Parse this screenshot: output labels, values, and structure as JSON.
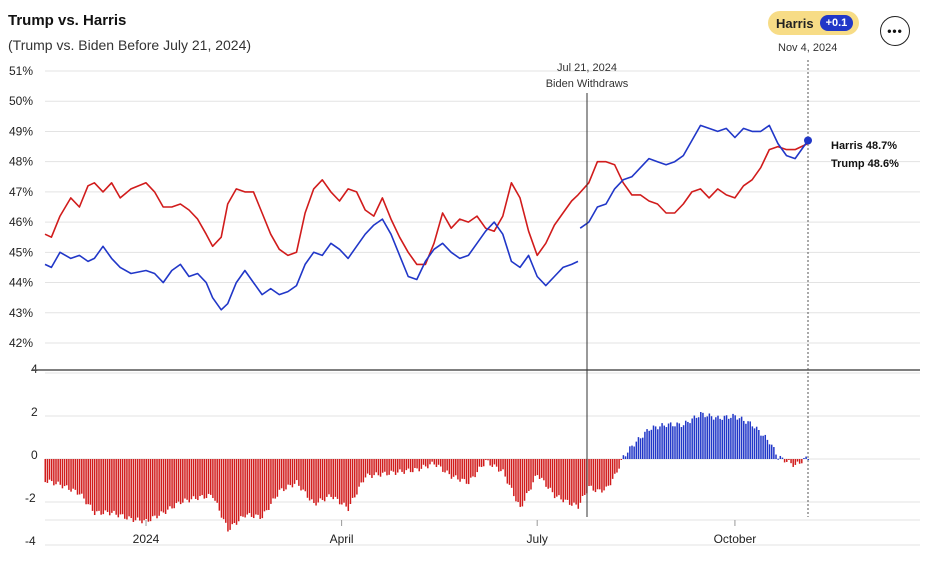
{
  "header": {
    "title": "Trump vs. Harris",
    "subtitle": "(Trump vs. Biden Before July 21, 2024)",
    "leader_badge": {
      "label": "Harris",
      "delta": "+0.1"
    },
    "as_of_date": "Nov 4, 2024",
    "menu_icon": "more-horizontal-icon"
  },
  "annotation": {
    "date": "Jul 21, 2024",
    "label": "Biden Withdraws"
  },
  "end_labels": {
    "harris": "Harris 48.7%",
    "trump": "Trump 48.6%"
  },
  "colors": {
    "trump": "#d11c1c",
    "dem": "#2137c8",
    "grid": "#e3e3e3",
    "axis": "#555555"
  },
  "chart_data": [
    {
      "type": "line",
      "x_start": "2023-11-15",
      "x_end": "2024-11-04",
      "x_ticks": [
        {
          "date": "2024-01-01",
          "label": "2024"
        },
        {
          "date": "2024-04-01",
          "label": "April"
        },
        {
          "date": "2024-07-01",
          "label": "July"
        },
        {
          "date": "2024-10-01",
          "label": "October"
        }
      ],
      "ylim": [
        42,
        51
      ],
      "y_ticks": [
        42,
        43,
        44,
        45,
        46,
        47,
        48,
        49,
        50,
        51
      ],
      "y_tick_labels": [
        "42%",
        "43%",
        "44%",
        "45%",
        "46%",
        "47%",
        "48%",
        "49%",
        "50%",
        "51%"
      ],
      "grid": true,
      "series": [
        {
          "name": "Trump",
          "color": "#d11c1c",
          "points": [
            [
              "2023-11-15",
              45.6
            ],
            [
              "2023-11-18",
              45.5
            ],
            [
              "2023-11-22",
              46.2
            ],
            [
              "2023-11-27",
              46.8
            ],
            [
              "2023-12-01",
              46.5
            ],
            [
              "2023-12-05",
              47.2
            ],
            [
              "2023-12-08",
              47.3
            ],
            [
              "2023-12-12",
              47.0
            ],
            [
              "2023-12-16",
              47.3
            ],
            [
              "2023-12-20",
              46.8
            ],
            [
              "2023-12-25",
              47.1
            ],
            [
              "2024-01-01",
              47.3
            ],
            [
              "2024-01-05",
              47.0
            ],
            [
              "2024-01-09",
              46.5
            ],
            [
              "2024-01-13",
              46.5
            ],
            [
              "2024-01-17",
              46.6
            ],
            [
              "2024-01-21",
              46.4
            ],
            [
              "2024-01-25",
              46.1
            ],
            [
              "2024-01-29",
              45.6
            ],
            [
              "2024-02-01",
              45.2
            ],
            [
              "2024-02-05",
              45.5
            ],
            [
              "2024-02-08",
              46.6
            ],
            [
              "2024-02-12",
              47.1
            ],
            [
              "2024-02-16",
              47.0
            ],
            [
              "2024-02-20",
              47.0
            ],
            [
              "2024-02-24",
              46.3
            ],
            [
              "2024-02-28",
              45.6
            ],
            [
              "2024-03-03",
              45.1
            ],
            [
              "2024-03-07",
              44.9
            ],
            [
              "2024-03-11",
              45.0
            ],
            [
              "2024-03-15",
              46.3
            ],
            [
              "2024-03-19",
              47.1
            ],
            [
              "2024-03-23",
              47.4
            ],
            [
              "2024-03-27",
              47.0
            ],
            [
              "2024-03-31",
              46.7
            ],
            [
              "2024-04-04",
              47.1
            ],
            [
              "2024-04-08",
              47.0
            ],
            [
              "2024-04-12",
              46.4
            ],
            [
              "2024-04-16",
              46.2
            ],
            [
              "2024-04-20",
              46.8
            ],
            [
              "2024-04-24",
              46.1
            ],
            [
              "2024-04-28",
              45.5
            ],
            [
              "2024-05-02",
              45.0
            ],
            [
              "2024-05-06",
              44.6
            ],
            [
              "2024-05-10",
              44.6
            ],
            [
              "2024-05-14",
              45.3
            ],
            [
              "2024-05-18",
              46.3
            ],
            [
              "2024-05-22",
              45.8
            ],
            [
              "2024-05-26",
              46.1
            ],
            [
              "2024-05-30",
              46.0
            ],
            [
              "2024-06-03",
              46.2
            ],
            [
              "2024-06-07",
              45.8
            ],
            [
              "2024-06-11",
              45.7
            ],
            [
              "2024-06-15",
              46.2
            ],
            [
              "2024-06-19",
              47.3
            ],
            [
              "2024-06-23",
              46.8
            ],
            [
              "2024-06-27",
              45.7
            ],
            [
              "2024-07-01",
              44.9
            ],
            [
              "2024-07-05",
              45.3
            ],
            [
              "2024-07-09",
              45.9
            ],
            [
              "2024-07-13",
              46.3
            ],
            [
              "2024-07-17",
              46.7
            ],
            [
              "2024-07-20",
              46.9
            ],
            [
              "2024-07-25",
              47.3
            ],
            [
              "2024-07-29",
              48.0
            ],
            [
              "2024-08-02",
              48.0
            ],
            [
              "2024-08-06",
              47.9
            ],
            [
              "2024-08-10",
              47.3
            ],
            [
              "2024-08-14",
              46.9
            ],
            [
              "2024-08-18",
              46.9
            ],
            [
              "2024-08-22",
              46.7
            ],
            [
              "2024-08-26",
              46.6
            ],
            [
              "2024-08-30",
              46.3
            ],
            [
              "2024-09-03",
              46.3
            ],
            [
              "2024-09-07",
              46.6
            ],
            [
              "2024-09-11",
              47.0
            ],
            [
              "2024-09-15",
              47.1
            ],
            [
              "2024-09-19",
              46.8
            ],
            [
              "2024-09-23",
              47.1
            ],
            [
              "2024-09-27",
              46.9
            ],
            [
              "2024-10-01",
              46.8
            ],
            [
              "2024-10-05",
              47.2
            ],
            [
              "2024-10-09",
              47.4
            ],
            [
              "2024-10-13",
              47.8
            ],
            [
              "2024-10-17",
              48.4
            ],
            [
              "2024-10-21",
              48.5
            ],
            [
              "2024-10-25",
              48.4
            ],
            [
              "2024-10-29",
              48.4
            ],
            [
              "2024-11-04",
              48.6
            ]
          ]
        },
        {
          "name": "Biden",
          "color": "#2137c8",
          "points": [
            [
              "2023-11-15",
              44.6
            ],
            [
              "2023-11-18",
              44.5
            ],
            [
              "2023-11-22",
              45.0
            ],
            [
              "2023-11-27",
              44.8
            ],
            [
              "2023-12-01",
              44.9
            ],
            [
              "2023-12-05",
              44.7
            ],
            [
              "2023-12-08",
              44.8
            ],
            [
              "2023-12-12",
              45.2
            ],
            [
              "2023-12-16",
              44.8
            ],
            [
              "2023-12-20",
              44.5
            ],
            [
              "2023-12-25",
              44.3
            ],
            [
              "2024-01-01",
              44.4
            ],
            [
              "2024-01-05",
              44.3
            ],
            [
              "2024-01-09",
              44.0
            ],
            [
              "2024-01-13",
              44.4
            ],
            [
              "2024-01-17",
              44.6
            ],
            [
              "2024-01-21",
              44.2
            ],
            [
              "2024-01-25",
              44.3
            ],
            [
              "2024-01-29",
              44.0
            ],
            [
              "2024-02-01",
              43.5
            ],
            [
              "2024-02-05",
              43.1
            ],
            [
              "2024-02-08",
              43.3
            ],
            [
              "2024-02-12",
              44.0
            ],
            [
              "2024-02-16",
              44.4
            ],
            [
              "2024-02-20",
              44.0
            ],
            [
              "2024-02-24",
              43.6
            ],
            [
              "2024-02-28",
              43.8
            ],
            [
              "2024-03-03",
              43.6
            ],
            [
              "2024-03-07",
              43.7
            ],
            [
              "2024-03-11",
              43.9
            ],
            [
              "2024-03-15",
              44.6
            ],
            [
              "2024-03-19",
              45.0
            ],
            [
              "2024-03-23",
              44.9
            ],
            [
              "2024-03-27",
              45.3
            ],
            [
              "2024-03-31",
              45.1
            ],
            [
              "2024-04-04",
              44.8
            ],
            [
              "2024-04-08",
              45.2
            ],
            [
              "2024-04-12",
              45.6
            ],
            [
              "2024-04-16",
              45.9
            ],
            [
              "2024-04-20",
              46.1
            ],
            [
              "2024-04-24",
              45.6
            ],
            [
              "2024-04-28",
              44.9
            ],
            [
              "2024-05-02",
              44.2
            ],
            [
              "2024-05-06",
              44.1
            ],
            [
              "2024-05-10",
              44.7
            ],
            [
              "2024-05-14",
              45.1
            ],
            [
              "2024-05-18",
              45.3
            ],
            [
              "2024-05-22",
              45.0
            ],
            [
              "2024-05-26",
              44.8
            ],
            [
              "2024-05-30",
              44.9
            ],
            [
              "2024-06-03",
              45.3
            ],
            [
              "2024-06-07",
              45.7
            ],
            [
              "2024-06-11",
              46.0
            ],
            [
              "2024-06-15",
              45.6
            ],
            [
              "2024-06-19",
              44.7
            ],
            [
              "2024-06-23",
              44.5
            ],
            [
              "2024-06-27",
              44.9
            ],
            [
              "2024-07-01",
              44.2
            ],
            [
              "2024-07-05",
              43.9
            ],
            [
              "2024-07-09",
              44.2
            ],
            [
              "2024-07-13",
              44.5
            ],
            [
              "2024-07-17",
              44.6
            ],
            [
              "2024-07-20",
              44.7
            ]
          ]
        },
        {
          "name": "Harris",
          "color": "#2137c8",
          "points": [
            [
              "2024-07-21",
              45.8
            ],
            [
              "2024-07-25",
              46.0
            ],
            [
              "2024-07-29",
              46.5
            ],
            [
              "2024-08-02",
              46.6
            ],
            [
              "2024-08-06",
              47.1
            ],
            [
              "2024-08-10",
              47.4
            ],
            [
              "2024-08-14",
              47.5
            ],
            [
              "2024-08-18",
              47.8
            ],
            [
              "2024-08-22",
              48.1
            ],
            [
              "2024-08-26",
              48.0
            ],
            [
              "2024-08-30",
              47.9
            ],
            [
              "2024-09-03",
              48.0
            ],
            [
              "2024-09-07",
              48.2
            ],
            [
              "2024-09-11",
              48.7
            ],
            [
              "2024-09-15",
              49.2
            ],
            [
              "2024-09-19",
              49.1
            ],
            [
              "2024-09-23",
              49.0
            ],
            [
              "2024-09-27",
              49.1
            ],
            [
              "2024-10-01",
              48.8
            ],
            [
              "2024-10-05",
              49.1
            ],
            [
              "2024-10-09",
              49.0
            ],
            [
              "2024-10-13",
              49.0
            ],
            [
              "2024-10-17",
              49.2
            ],
            [
              "2024-10-21",
              48.6
            ],
            [
              "2024-10-25",
              48.2
            ],
            [
              "2024-10-29",
              48.1
            ],
            [
              "2024-11-04",
              48.7
            ]
          ]
        }
      ]
    },
    {
      "type": "bar",
      "description": "Margin (Democrat minus Trump), percentage points",
      "ylim": [
        -4,
        4
      ],
      "y_ticks": [
        -4,
        -2,
        0,
        2,
        4
      ],
      "y_tick_labels": [
        "-4",
        "-2",
        "0",
        "2",
        "4"
      ],
      "series": [
        {
          "name": "Margin",
          "positive_color": "#2137c8",
          "negative_color": "#d11c1c",
          "points": [
            [
              "2023-11-15",
              -1.0
            ],
            [
              "2023-11-22",
              -1.2
            ],
            [
              "2023-12-01",
              -1.6
            ],
            [
              "2023-12-08",
              -2.5
            ],
            [
              "2023-12-16",
              -2.5
            ],
            [
              "2023-12-25",
              -2.8
            ],
            [
              "2024-01-01",
              -2.9
            ],
            [
              "2024-01-09",
              -2.5
            ],
            [
              "2024-01-17",
              -2.0
            ],
            [
              "2024-01-25",
              -1.8
            ],
            [
              "2024-02-01",
              -1.7
            ],
            [
              "2024-02-08",
              -3.3
            ],
            [
              "2024-02-16",
              -2.6
            ],
            [
              "2024-02-24",
              -2.7
            ],
            [
              "2024-03-03",
              -1.5
            ],
            [
              "2024-03-11",
              -1.1
            ],
            [
              "2024-03-19",
              -2.1
            ],
            [
              "2024-03-27",
              -1.7
            ],
            [
              "2024-04-04",
              -2.3
            ],
            [
              "2024-04-12",
              -0.8
            ],
            [
              "2024-04-20",
              -0.7
            ],
            [
              "2024-04-28",
              -0.6
            ],
            [
              "2024-05-06",
              -0.5
            ],
            [
              "2024-05-14",
              -0.2
            ],
            [
              "2024-05-22",
              -0.8
            ],
            [
              "2024-05-30",
              -1.1
            ],
            [
              "2024-06-07",
              -0.1
            ],
            [
              "2024-06-15",
              -0.6
            ],
            [
              "2024-06-23",
              -2.3
            ],
            [
              "2024-07-01",
              -0.7
            ],
            [
              "2024-07-09",
              -1.7
            ],
            [
              "2024-07-17",
              -2.1
            ],
            [
              "2024-07-20",
              -2.2
            ],
            [
              "2024-07-25",
              -1.3
            ],
            [
              "2024-07-29",
              -1.5
            ],
            [
              "2024-08-02",
              -1.4
            ],
            [
              "2024-08-06",
              -0.8
            ],
            [
              "2024-08-10",
              0.1
            ],
            [
              "2024-08-14",
              0.6
            ],
            [
              "2024-08-22",
              1.4
            ],
            [
              "2024-08-30",
              1.6
            ],
            [
              "2024-09-07",
              1.6
            ],
            [
              "2024-09-15",
              2.1
            ],
            [
              "2024-09-23",
              1.9
            ],
            [
              "2024-10-01",
              2.0
            ],
            [
              "2024-10-09",
              1.6
            ],
            [
              "2024-10-17",
              0.8
            ],
            [
              "2024-10-21",
              0.1
            ],
            [
              "2024-10-29",
              -0.3
            ],
            [
              "2024-11-04",
              0.1
            ]
          ]
        }
      ]
    }
  ]
}
